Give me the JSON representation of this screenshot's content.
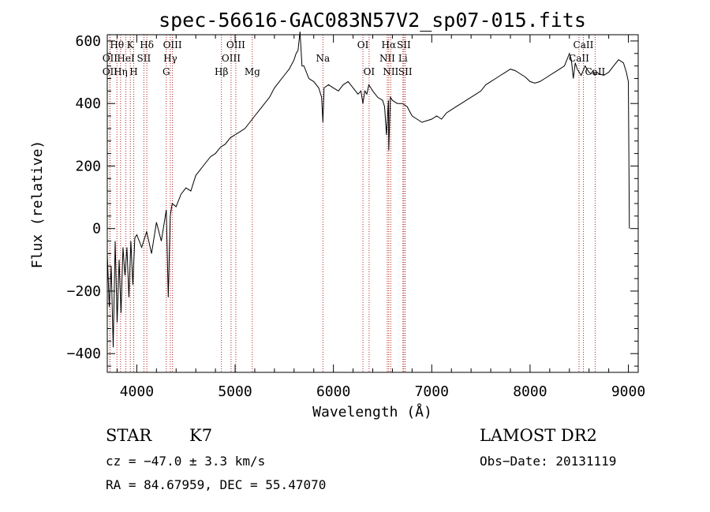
{
  "chart_data": {
    "type": "line",
    "title": "spec-56616-GAC083N57V2_sp07-015.fits",
    "xlabel": "Wavelength (Å)",
    "ylabel": "Flux (relative)",
    "xlim": [
      3700,
      9100
    ],
    "ylim": [
      -460,
      620
    ],
    "x_ticks": [
      4000,
      5000,
      6000,
      7000,
      8000,
      9000
    ],
    "x_tick_labels": [
      "4000",
      "5000",
      "6000",
      "7000",
      "8000",
      "9000"
    ],
    "y_ticks": [
      -400,
      -200,
      0,
      200,
      400,
      600
    ],
    "y_tick_labels": [
      "−400",
      "−200",
      "0",
      "200",
      "400",
      "600"
    ],
    "grid": false,
    "series": [
      {
        "x": [
          3700,
          3720,
          3740,
          3760,
          3780,
          3800,
          3820,
          3840,
          3860,
          3880,
          3900,
          3920,
          3940,
          3960,
          3980,
          4000,
          4050,
          4100,
          4150,
          4200,
          4250,
          4300,
          4320,
          4340,
          4360,
          4400,
          4450,
          4500,
          4550,
          4600,
          4650,
          4700,
          4750,
          4800,
          4850,
          4900,
          4950,
          5000,
          5050,
          5100,
          5150,
          5200,
          5250,
          5300,
          5350,
          5400,
          5450,
          5500,
          5550,
          5600,
          5620,
          5640,
          5660,
          5680,
          5700,
          5750,
          5800,
          5850,
          5880,
          5893,
          5905,
          5950,
          6000,
          6050,
          6100,
          6150,
          6200,
          6250,
          6280,
          6300,
          6320,
          6340,
          6360,
          6400,
          6450,
          6500,
          6520,
          6540,
          6560,
          6563,
          6580,
          6600,
          6650,
          6700,
          6750,
          6800,
          6850,
          6900,
          6950,
          7000,
          7050,
          7100,
          7150,
          7200,
          7250,
          7300,
          7350,
          7400,
          7450,
          7500,
          7550,
          7600,
          7650,
          7700,
          7750,
          7800,
          7850,
          7900,
          7950,
          8000,
          8050,
          8100,
          8150,
          8200,
          8250,
          8300,
          8350,
          8400,
          8420,
          8440,
          8460,
          8480,
          8500,
          8520,
          8540,
          8560,
          8580,
          8600,
          8620,
          8640,
          8660,
          8680,
          8700,
          8750,
          8800,
          8850,
          8900,
          8950,
          8980,
          9000,
          9010
        ],
        "y": [
          -80,
          -250,
          -120,
          -380,
          -40,
          -300,
          -100,
          -270,
          -60,
          -150,
          -60,
          -220,
          -40,
          -180,
          -30,
          -20,
          -60,
          -10,
          -80,
          20,
          -40,
          60,
          -220,
          40,
          80,
          70,
          110,
          130,
          120,
          170,
          190,
          210,
          230,
          240,
          260,
          270,
          290,
          300,
          310,
          320,
          340,
          360,
          380,
          400,
          420,
          450,
          470,
          490,
          510,
          540,
          560,
          570,
          630,
          520,
          520,
          480,
          470,
          450,
          420,
          340,
          450,
          460,
          450,
          440,
          460,
          470,
          450,
          430,
          440,
          400,
          440,
          430,
          460,
          440,
          420,
          410,
          390,
          300,
          410,
          250,
          420,
          410,
          400,
          400,
          390,
          360,
          350,
          340,
          345,
          350,
          360,
          350,
          370,
          380,
          390,
          400,
          410,
          420,
          430,
          440,
          460,
          470,
          480,
          490,
          500,
          510,
          505,
          495,
          485,
          470,
          465,
          470,
          480,
          490,
          500,
          510,
          520,
          560,
          540,
          480,
          530,
          510,
          500,
          490,
          505,
          520,
          510,
          500,
          495,
          505,
          490,
          500,
          495,
          490,
          500,
          520,
          540,
          530,
          500,
          470,
          0
        ]
      }
    ],
    "line_markers": [
      {
        "x": 3798,
        "label": "Hθ",
        "row": 0
      },
      {
        "x": 3727,
        "label": "OII",
        "row": 1
      },
      {
        "x": 3727,
        "label": "OII",
        "row": 2
      },
      {
        "x": 3835,
        "label": "Hη",
        "row": 2
      },
      {
        "x": 3889,
        "label": "HeI",
        "row": 1
      },
      {
        "x": 3934,
        "label": "K",
        "row": 0
      },
      {
        "x": 3969,
        "label": "H",
        "row": 2
      },
      {
        "x": 4072,
        "label": "SII",
        "row": 1
      },
      {
        "x": 4102,
        "label": "Hδ",
        "row": 0
      },
      {
        "x": 4300,
        "label": "G",
        "row": 2
      },
      {
        "x": 4341,
        "label": "Hγ",
        "row": 1
      },
      {
        "x": 4363,
        "label": "OIII",
        "row": 0
      },
      {
        "x": 4861,
        "label": "Hβ",
        "row": 2
      },
      {
        "x": 4959,
        "label": "OIII",
        "row": 1
      },
      {
        "x": 5007,
        "label": "OIII",
        "row": 0
      },
      {
        "x": 5175,
        "label": "Mg",
        "row": 2
      },
      {
        "x": 5893,
        "label": "Na",
        "row": 1
      },
      {
        "x": 6300,
        "label": "OI",
        "row": 0
      },
      {
        "x": 6363,
        "label": "OI",
        "row": 2
      },
      {
        "x": 6548,
        "label": "NII",
        "row": 1
      },
      {
        "x": 6563,
        "label": "Hα",
        "row": 0
      },
      {
        "x": 6583,
        "label": "NII",
        "row": 2
      },
      {
        "x": 6707,
        "label": "Li",
        "row": 1
      },
      {
        "x": 6716,
        "label": "SII",
        "row": 0
      },
      {
        "x": 6731,
        "label": "SII",
        "row": 2
      },
      {
        "x": 8498,
        "label": "CaII",
        "row": 1
      },
      {
        "x": 8542,
        "label": "CaII",
        "row": 0
      },
      {
        "x": 8662,
        "label": "CaII",
        "row": 2
      }
    ],
    "marker_color": "#b02020"
  },
  "info": {
    "object_class": "STAR",
    "subclass": "K7",
    "survey": "LAMOST DR2",
    "redshift": "cz = −47.0 ± 3.3 km/s",
    "obs_date": "Obs−Date: 20131119",
    "coords": "RA =  84.67959, DEC =  55.47070"
  }
}
